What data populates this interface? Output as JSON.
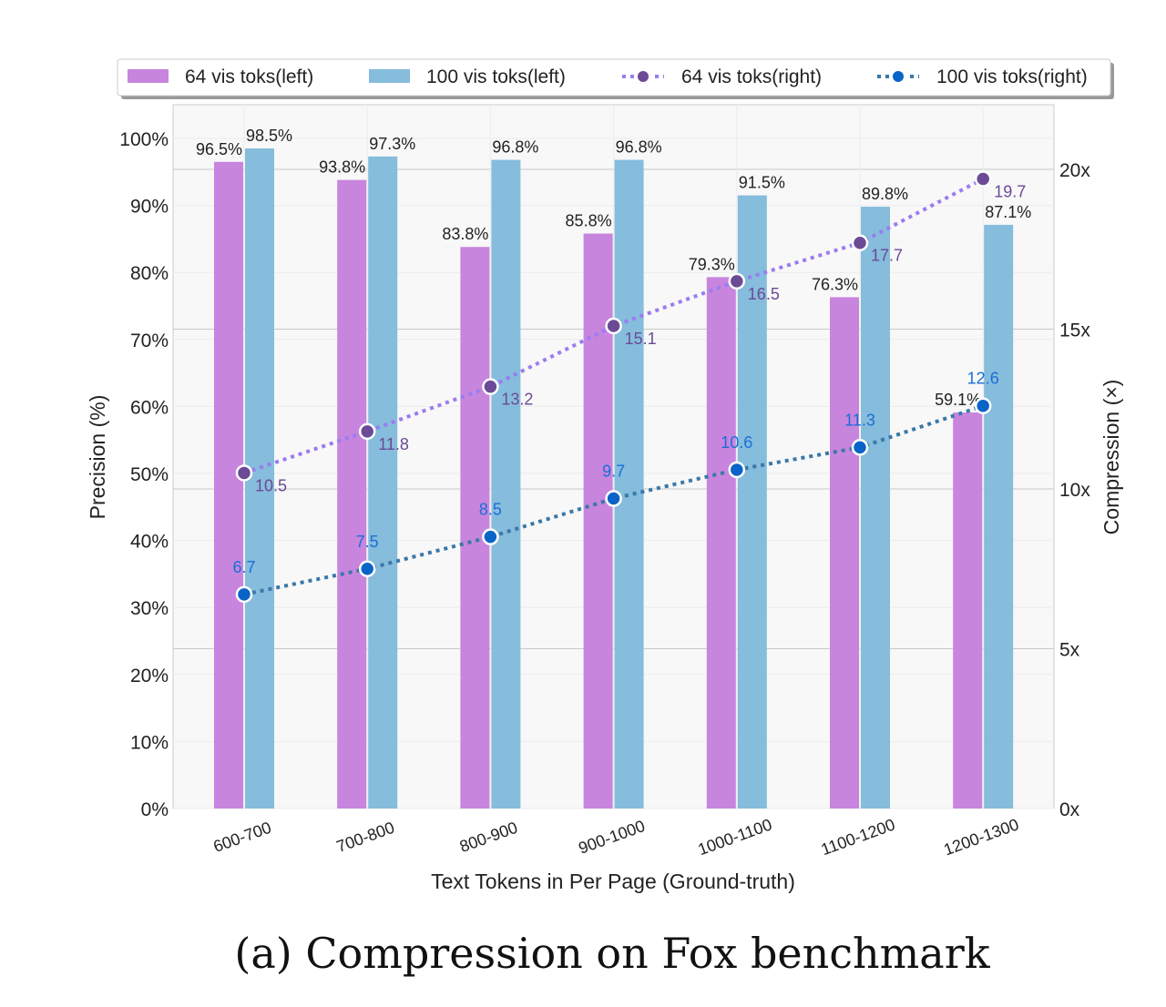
{
  "chart_data": {
    "type": "bar",
    "caption": "(a) Compression on Fox benchmark",
    "xlabel": "Text Tokens in Per Page (Ground-truth)",
    "ylabel": "Precision (%)",
    "ylabel_right": "Compression (×)",
    "categories": [
      "600-700",
      "700-800",
      "800-900",
      "900-1000",
      "1000-1100",
      "1100-1200",
      "1200-1300"
    ],
    "ylim": [
      0,
      100
    ],
    "yticks": [
      "0%",
      "10%",
      "20%",
      "30%",
      "40%",
      "50%",
      "60%",
      "70%",
      "80%",
      "90%",
      "100%"
    ],
    "ylim_right": [
      0,
      22
    ],
    "yticks_right": [
      "0x",
      "5x",
      "10x",
      "15x",
      "20x"
    ],
    "grid": true,
    "legend_position": "top",
    "bar_series": [
      {
        "name": "64 vis toks(left)",
        "color": "#c785de",
        "values": [
          96.5,
          93.8,
          83.8,
          85.8,
          79.3,
          76.3,
          59.1
        ],
        "labels": [
          "96.5%",
          "93.8%",
          "83.8%",
          "85.8%",
          "79.3%",
          "76.3%",
          "59.1%"
        ]
      },
      {
        "name": "100 vis toks(left)",
        "color": "#86bcdc",
        "values": [
          98.5,
          97.3,
          96.8,
          96.8,
          91.5,
          89.8,
          87.1
        ],
        "labels": [
          "98.5%",
          "97.3%",
          "96.8%",
          "96.8%",
          "91.5%",
          "89.8%",
          "87.1%"
        ]
      }
    ],
    "line_series": [
      {
        "name": "64 vis toks(right)",
        "color": "#9a7cf0",
        "marker_color": "#6b4a96",
        "label_color": "#6b4a96",
        "values": [
          10.5,
          11.8,
          13.2,
          15.1,
          16.5,
          17.7,
          19.7
        ],
        "labels": [
          "10.5",
          "11.8",
          "13.2",
          "15.1",
          "16.5",
          "17.7",
          "19.7"
        ]
      },
      {
        "name": "100 vis toks(right)",
        "color": "#3a78a8",
        "marker_color": "#0a64c8",
        "label_color": "#1a6fd6",
        "values": [
          6.7,
          7.5,
          8.5,
          9.7,
          10.6,
          11.3,
          12.6
        ],
        "labels": [
          "6.7",
          "7.5",
          "8.5",
          "9.7",
          "10.6",
          "11.3",
          "12.6"
        ]
      }
    ]
  }
}
